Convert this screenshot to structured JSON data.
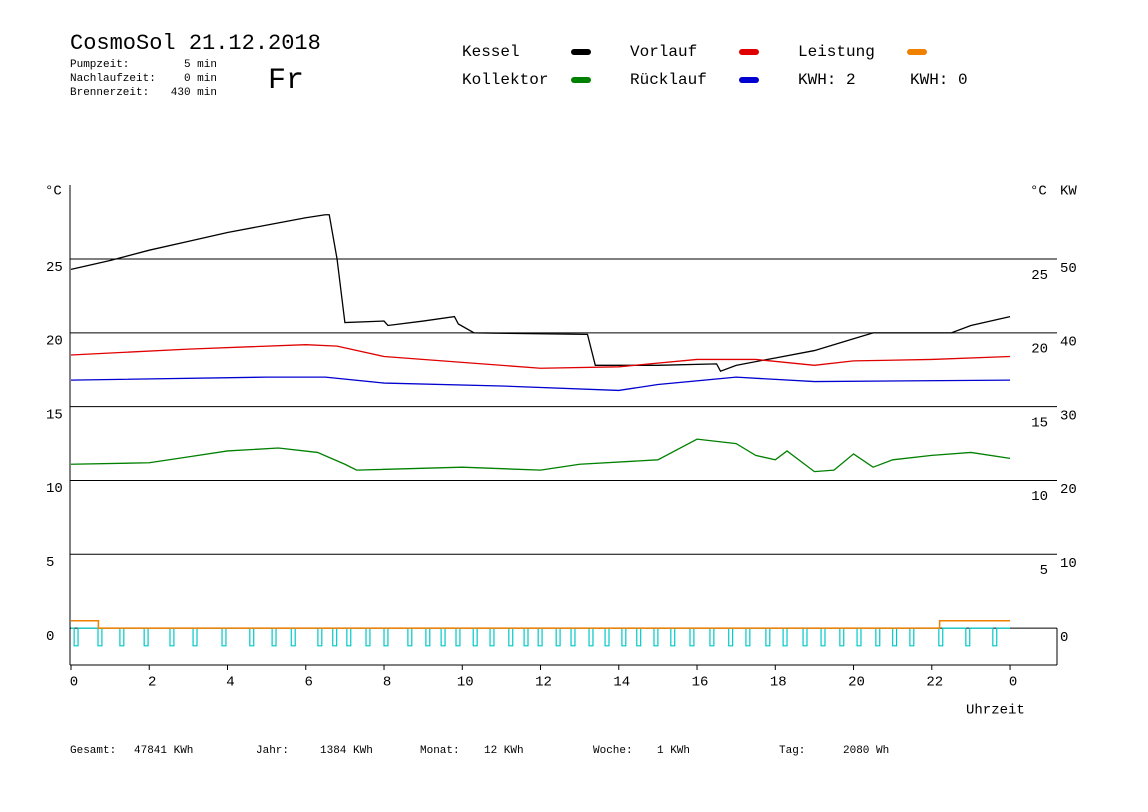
{
  "header": {
    "title": "CosmoSol 21.12.2018",
    "day": "Fr",
    "info": [
      {
        "label": "Pumpzeit:",
        "value": "5 min"
      },
      {
        "label": "Nachlaufzeit:",
        "value": "0 min"
      },
      {
        "label": "Brennerzeit:",
        "value": "430 min"
      }
    ],
    "kwh": [
      {
        "text": "KWH: 2",
        "color": "#e08000"
      },
      {
        "text": "KWH: 0",
        "color": "#800080"
      }
    ]
  },
  "chart_data": {
    "type": "line",
    "y_unit": "°C",
    "y2_unit_c": "°C",
    "y2_unit": "KW",
    "x_label": "Uhrzeit",
    "xlim": [
      0,
      25.2
    ],
    "xticks": [
      0,
      2,
      4,
      6,
      8,
      10,
      12,
      14,
      16,
      18,
      20,
      22,
      {
        "value": 24,
        "label": "0"
      }
    ],
    "ylim": [
      -2.5,
      29
    ],
    "yticks": [
      0,
      5,
      10,
      15,
      20,
      25
    ],
    "y2lim": [
      -5,
      58
    ],
    "y2ticks": [
      0,
      10,
      20,
      30,
      40,
      50
    ],
    "grid": true,
    "series": [
      {
        "name": "Kessel",
        "color": "#000000",
        "x": [
          0,
          1,
          2,
          3,
          4,
          5,
          6,
          6.5,
          6.6,
          6.8,
          7,
          8,
          8.1,
          9,
          9.8,
          9.9,
          10.3,
          13.2,
          13.4,
          15,
          16.5,
          16.6,
          17,
          18,
          19,
          20,
          20.5,
          22.5,
          23,
          24
        ],
        "values": [
          24.3,
          24.9,
          25.6,
          26.2,
          26.8,
          27.3,
          27.8,
          28.0,
          28.0,
          25.0,
          20.7,
          20.8,
          20.5,
          20.8,
          21.1,
          20.6,
          20.0,
          19.9,
          17.8,
          17.8,
          17.9,
          17.4,
          17.8,
          18.3,
          18.8,
          19.6,
          20.0,
          20.0,
          20.5,
          21.1
        ]
      },
      {
        "name": "Vorlauf",
        "color": "#e00000",
        "x": [
          0,
          3,
          6,
          6.8,
          8,
          10,
          12,
          14,
          16,
          17.5,
          19,
          20,
          22,
          24
        ],
        "values": [
          18.5,
          18.9,
          19.2,
          19.1,
          18.4,
          18.0,
          17.6,
          17.7,
          18.2,
          18.2,
          17.8,
          18.1,
          18.2,
          18.4
        ]
      },
      {
        "name": "Leistung",
        "color": "#f08000",
        "axis": "y2",
        "x": [
          0,
          0.7,
          0.7,
          22.2,
          22.2,
          24
        ],
        "values": [
          1,
          1,
          0,
          0,
          1,
          1
        ]
      },
      {
        "name": "Kollektor",
        "color": "#008000",
        "x": [
          0,
          2,
          3,
          4,
          5.3,
          6.3,
          7,
          7.3,
          10,
          12,
          13,
          15,
          16,
          17,
          17.5,
          18,
          18.3,
          19,
          19.5,
          20,
          20.5,
          21,
          22,
          23,
          24
        ],
        "values": [
          11.1,
          11.2,
          11.6,
          12.0,
          12.2,
          11.9,
          11.1,
          10.7,
          10.9,
          10.7,
          11.1,
          11.4,
          12.8,
          12.5,
          11.7,
          11.4,
          12.0,
          10.6,
          10.7,
          11.8,
          10.9,
          11.4,
          11.7,
          11.9,
          11.5
        ]
      },
      {
        "name": "Rücklauf",
        "color": "#0000d0",
        "x": [
          0,
          5,
          6.5,
          8,
          11,
          14,
          15,
          17,
          19,
          24
        ],
        "values": [
          16.8,
          17.0,
          17.0,
          16.6,
          16.4,
          16.1,
          16.5,
          17.0,
          16.7,
          16.8
        ]
      }
    ],
    "pump": {
      "color": "#00c8c8",
      "width": 0.1,
      "depth": -1.2,
      "starts": [
        0.08,
        0.69,
        1.25,
        1.87,
        2.53,
        3.12,
        3.86,
        4.57,
        5.14,
        5.63,
        6.31,
        6.69,
        7.05,
        7.54,
        8.0,
        8.61,
        9.07,
        9.46,
        9.84,
        10.28,
        10.71,
        11.19,
        11.58,
        11.94,
        12.4,
        12.78,
        13.24,
        13.65,
        14.08,
        14.46,
        14.9,
        15.33,
        15.82,
        16.33,
        16.81,
        17.25,
        17.76,
        18.2,
        18.71,
        19.17,
        19.65,
        20.09,
        20.57,
        21.0,
        21.44,
        22.18,
        22.87,
        23.56
      ]
    }
  },
  "footer": [
    {
      "label": "Gesamt:",
      "value": "47841 KWh"
    },
    {
      "label": "Jahr:",
      "value": "1384 KWh"
    },
    {
      "label": "Monat:",
      "value": "12 KWh"
    },
    {
      "label": "Woche:",
      "value": "1 KWh"
    },
    {
      "label": "Tag:",
      "value": "2080 Wh"
    }
  ]
}
